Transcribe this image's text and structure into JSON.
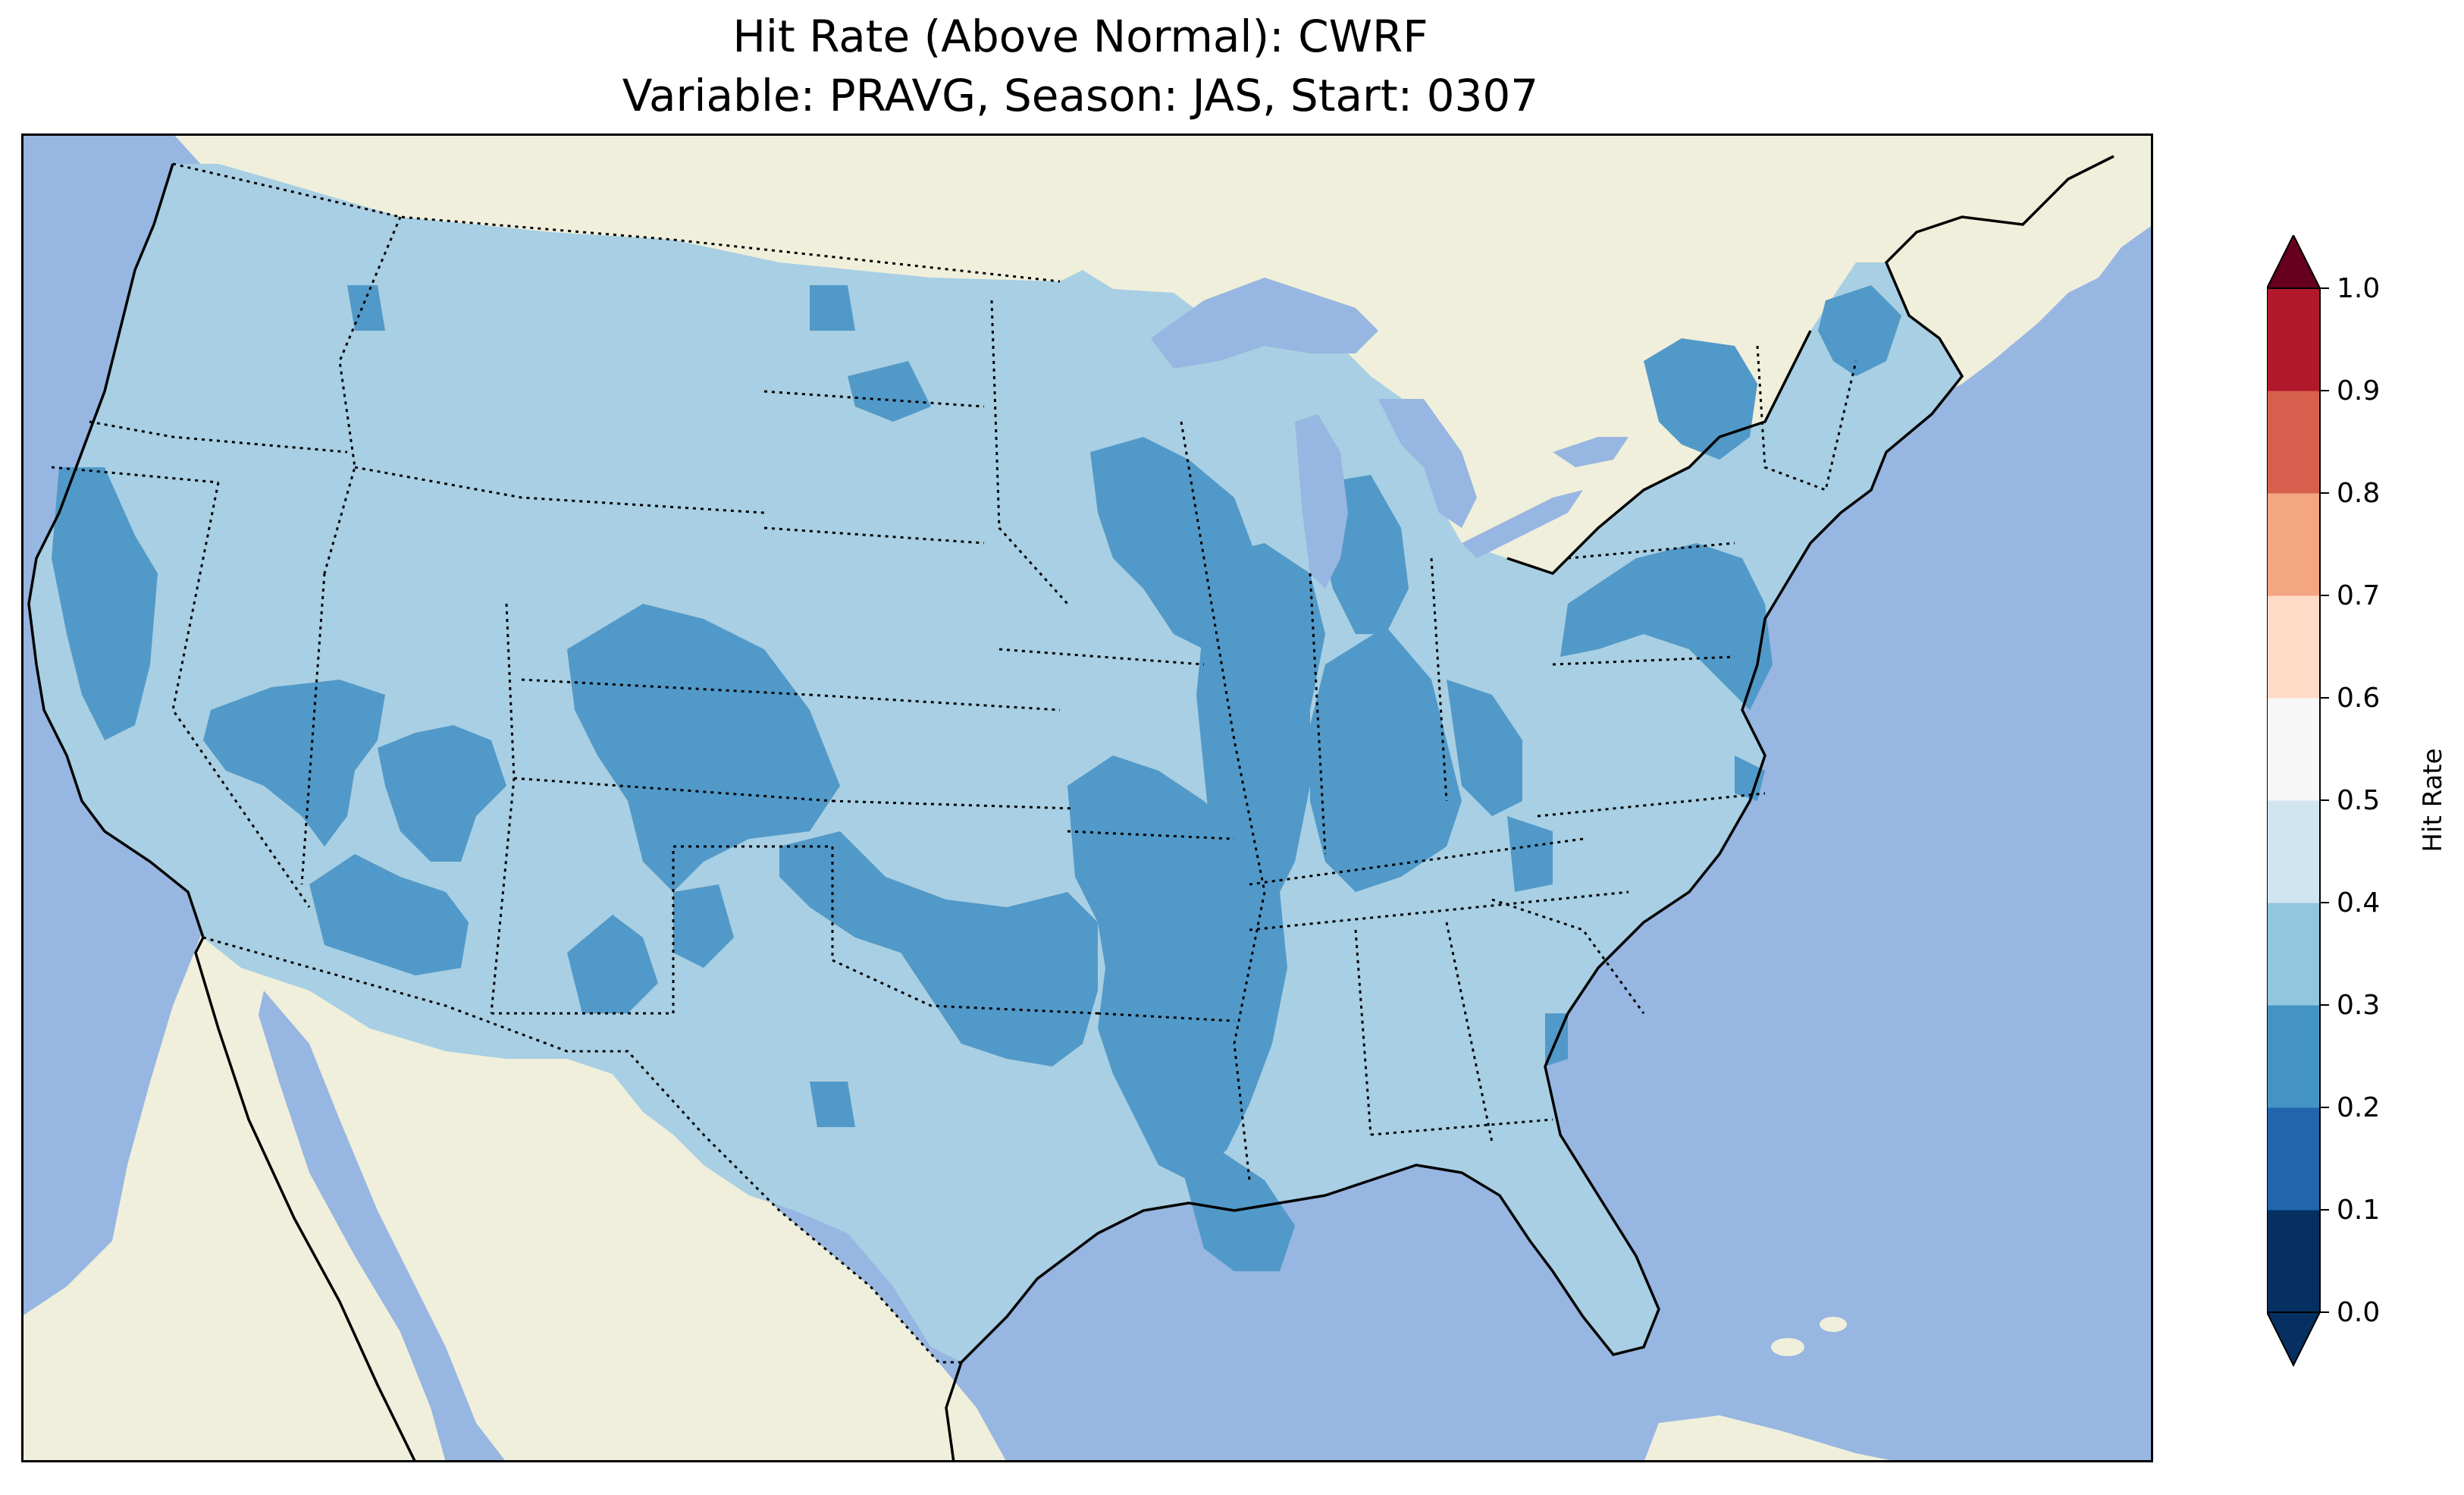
{
  "title": "Hit Rate (Above Normal): CWRF",
  "subtitle": "Variable: PRAVG, Season: JAS, Start: 0307",
  "colorbar": {
    "label": "Hit Rate",
    "ticks": [
      "0.0",
      "0.1",
      "0.2",
      "0.3",
      "0.4",
      "0.5",
      "0.6",
      "0.7",
      "0.8",
      "0.9",
      "1.0"
    ],
    "bin_colors": [
      "#053061",
      "#2166ac",
      "#4393c3",
      "#92c5de",
      "#d1e5f0",
      "#f7f7f7",
      "#fddbc7",
      "#f4a582",
      "#d6604d",
      "#b2182b"
    ],
    "under_color": "#053061",
    "over_color": "#67001f",
    "extend": "both"
  },
  "map": {
    "projection": "Lambert Conformal",
    "region": "Contiguous United States",
    "ocean_color": "#97b6e1",
    "land_color": "#efefdb",
    "dominant_bin": "0.3-0.4",
    "dominant_color": "#a8cfe3",
    "secondary_bin": "0.2-0.3",
    "secondary_color": "#5199c8",
    "features": [
      "coastlines",
      "state borders",
      "country borders",
      "lakes"
    ]
  },
  "chart_data": {
    "type": "heatmap",
    "title": "Hit Rate (Above Normal): CWRF",
    "subtitle": "Variable: PRAVG, Season: JAS, Start: 0307",
    "colorbar_label": "Hit Rate",
    "range": [
      0.0,
      1.0
    ],
    "bin_edges": [
      0.0,
      0.1,
      0.2,
      0.3,
      0.4,
      0.5,
      0.6,
      0.7,
      0.8,
      0.9,
      1.0
    ],
    "observed_bins": [
      "0.2-0.3",
      "0.3-0.4"
    ],
    "regions_in_0.2_0.3": [
      "Northern California coast",
      "Central Nevada",
      "Southern Nevada / Arizona border",
      "Colorado / Utah border",
      "Western Oklahoma / Texas panhandle",
      "Arkansas / Missouri",
      "Mississippi valley (Illinois, Indiana, Kentucky)",
      "Iowa / Minnesota / Wisconsin",
      "Michigan lower peninsula",
      "New York",
      "Maine",
      "Pennsylvania / New Jersey / Maryland",
      "Louisiana / Mississippi delta",
      "Georgia coast"
    ]
  }
}
